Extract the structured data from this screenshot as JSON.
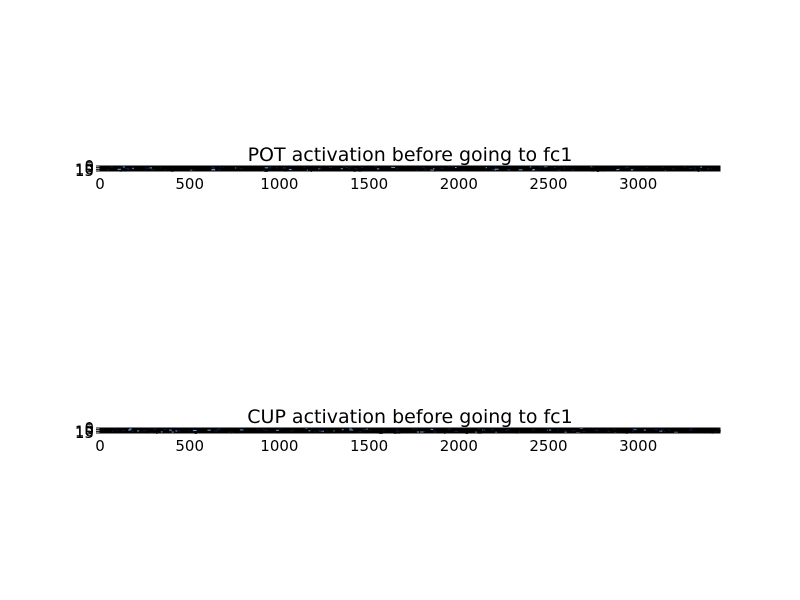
{
  "chart_data": [
    {
      "type": "heatmap",
      "title": "POT activation before going to fc1",
      "xlabel": "",
      "ylabel": "",
      "x_ticks": [
        "0",
        "500",
        "1000",
        "1500",
        "2000",
        "2500",
        "3000"
      ],
      "y_tick_labels": [
        "0",
        "5",
        "10",
        "15"
      ],
      "xlim": [
        0,
        3456
      ],
      "ylim": [
        0,
        16
      ],
      "grid": false,
      "colormap": "dark-blue-to-black",
      "colors": {
        "background": "#000000",
        "activation_low": "#0b1c3c",
        "activation_high": "#6ea0d8"
      }
    },
    {
      "type": "heatmap",
      "title": "CUP activation before going to fc1",
      "xlabel": "",
      "ylabel": "",
      "x_ticks": [
        "0",
        "500",
        "1000",
        "1500",
        "2000",
        "2500",
        "3000"
      ],
      "y_tick_labels": [
        "0",
        "5",
        "10",
        "15"
      ],
      "xlim": [
        0,
        3456
      ],
      "ylim": [
        0,
        16
      ],
      "grid": false,
      "colormap": "dark-blue-to-black",
      "colors": {
        "background": "#000000",
        "activation_low": "#0b1c3c",
        "activation_high": "#6ea0d8"
      }
    }
  ]
}
